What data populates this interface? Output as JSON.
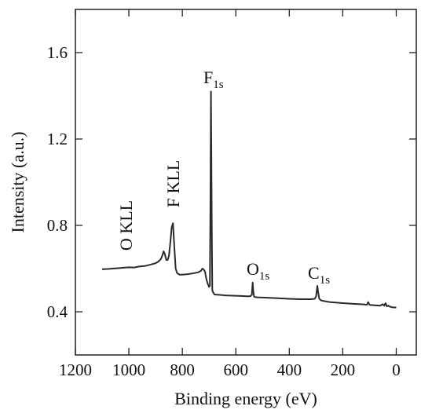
{
  "chart_data": {
    "type": "line",
    "x_label": "Binding energy (eV)",
    "y_label": "Intensity (a.u.)",
    "xlim": [
      1200,
      -75
    ],
    "ylim": [
      0.2,
      1.8
    ],
    "xticks": [
      1200,
      1000,
      800,
      600,
      400,
      200,
      0
    ],
    "yticks": [
      0.4,
      0.8,
      1.2,
      1.6
    ],
    "color": "#2a2a2a",
    "x": [
      1100,
      1080,
      1060,
      1040,
      1020,
      1000,
      980,
      960,
      940,
      920,
      900,
      890,
      880,
      875,
      870,
      865,
      860,
      855,
      850,
      845,
      840,
      835,
      830,
      825,
      820,
      815,
      810,
      800,
      780,
      760,
      740,
      730,
      725,
      720,
      715,
      710,
      705,
      700,
      697,
      695,
      693,
      690,
      688,
      685,
      680,
      660,
      640,
      620,
      600,
      580,
      560,
      545,
      540,
      537,
      535,
      532,
      528,
      520,
      500,
      450,
      400,
      350,
      320,
      305,
      300,
      297,
      295,
      292,
      288,
      280,
      250,
      200,
      150,
      120,
      110,
      105,
      100,
      80,
      60,
      50,
      45,
      40,
      35,
      30,
      20,
      10,
      0
    ],
    "values": [
      0.597,
      0.598,
      0.6,
      0.602,
      0.604,
      0.606,
      0.605,
      0.61,
      0.612,
      0.618,
      0.625,
      0.632,
      0.645,
      0.66,
      0.68,
      0.665,
      0.64,
      0.64,
      0.66,
      0.72,
      0.79,
      0.81,
      0.7,
      0.6,
      0.58,
      0.575,
      0.572,
      0.572,
      0.574,
      0.578,
      0.583,
      0.59,
      0.6,
      0.595,
      0.585,
      0.55,
      0.53,
      0.515,
      0.52,
      0.9,
      1.42,
      0.8,
      0.5,
      0.49,
      0.48,
      0.478,
      0.476,
      0.475,
      0.474,
      0.473,
      0.472,
      0.472,
      0.48,
      0.535,
      0.5,
      0.47,
      0.468,
      0.467,
      0.466,
      0.463,
      0.46,
      0.458,
      0.458,
      0.46,
      0.47,
      0.5,
      0.52,
      0.49,
      0.46,
      0.452,
      0.445,
      0.44,
      0.436,
      0.434,
      0.432,
      0.445,
      0.432,
      0.43,
      0.428,
      0.435,
      0.428,
      0.44,
      0.425,
      0.428,
      0.422,
      0.42,
      0.42
    ],
    "annotations": [
      {
        "text": "O KLL"
      },
      {
        "text": "F KLL"
      },
      {
        "main": "F",
        "sub": "1s"
      },
      {
        "main": "O",
        "sub": "1s"
      },
      {
        "main": "C",
        "sub": "1s"
      }
    ]
  }
}
